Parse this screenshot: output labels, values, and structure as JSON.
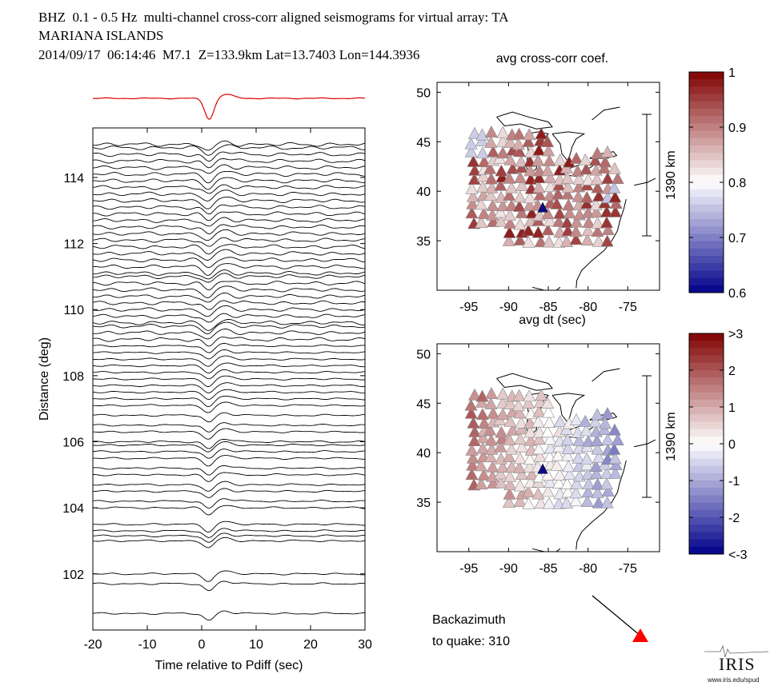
{
  "header": {
    "line1": "BHZ  0.1 - 0.5 Hz  multi-channel cross-corr aligned seismograms for virtual array: TA",
    "line2": "MARIANA ISLANDS",
    "line3": "2014/09/17  06:14:46  M7.1  Z=133.9km Lat=13.7403 Lon=144.3936"
  },
  "chart_data": [
    {
      "type": "line",
      "name": "record-section",
      "title": "",
      "xlabel": "Time relative to Pdiff (sec)",
      "ylabel": "Distance (deg)",
      "xlim": [
        -20,
        30
      ],
      "ylim": [
        100.3,
        115.5
      ],
      "xticks": [
        -20,
        -10,
        0,
        10,
        20,
        30
      ],
      "yticks": [
        102,
        104,
        106,
        108,
        110,
        112,
        114
      ],
      "stack_trace": "red stacked waveform above the section",
      "trace_distances_deg": [
        100.8,
        101.7,
        102.0,
        103.0,
        103.15,
        103.3,
        103.5,
        104.0,
        104.2,
        104.5,
        104.7,
        105.0,
        105.2,
        105.5,
        105.7,
        105.9,
        106.0,
        106.3,
        106.5,
        106.8,
        107.1,
        107.3,
        107.5,
        107.7,
        107.9,
        108.1,
        108.3,
        108.5,
        108.7,
        108.9,
        109.1,
        109.3,
        109.5,
        109.6,
        109.8,
        110.0,
        110.2,
        110.4,
        110.6,
        110.8,
        111.0,
        111.1,
        111.3,
        111.5,
        111.7,
        111.9,
        112.1,
        112.3,
        112.5,
        112.7,
        112.9,
        113.1,
        113.3,
        113.5,
        113.7,
        113.9,
        114.1,
        114.3,
        114.5,
        114.7,
        114.9,
        115.0
      ]
    },
    {
      "type": "scatter",
      "name": "map-cross-corr",
      "title": "avg cross-corr coef.",
      "xticks": [
        -95,
        -90,
        -85,
        -80,
        -75
      ],
      "yticks": [
        35,
        40,
        45,
        50
      ],
      "xlim": [
        -99,
        -71
      ],
      "ylim": [
        30,
        51
      ],
      "scale_label": "1390 km",
      "colorbar": {
        "ticks": [
          "1",
          "0.9",
          "0.8",
          "0.7",
          "0.6"
        ],
        "min": 0.6,
        "max": 1.0,
        "colors": [
          "#800000",
          "#ffffff",
          "#00008b"
        ]
      },
      "mode": "coef"
    },
    {
      "type": "scatter",
      "name": "map-dt",
      "title": "avg dt (sec)",
      "xticks": [
        -95,
        -90,
        -85,
        -80,
        -75
      ],
      "yticks": [
        35,
        40,
        45,
        50
      ],
      "xlim": [
        -99,
        -71
      ],
      "ylim": [
        30,
        51
      ],
      "scale_label": "1390 km",
      "colorbar": {
        "ticks": [
          ">3",
          "2",
          "1",
          "0",
          "-1",
          "-2",
          "<-3"
        ],
        "min": -3,
        "max": 3,
        "colors": [
          "#800000",
          "#ffffff",
          "#00008b"
        ]
      },
      "mode": "dt"
    }
  ],
  "backazimuth": {
    "label": "Backazimuth",
    "line2": "to quake:  310",
    "value_deg": 310
  },
  "logo": {
    "word": "IRIS",
    "url": "www.iris.edu/spud"
  }
}
